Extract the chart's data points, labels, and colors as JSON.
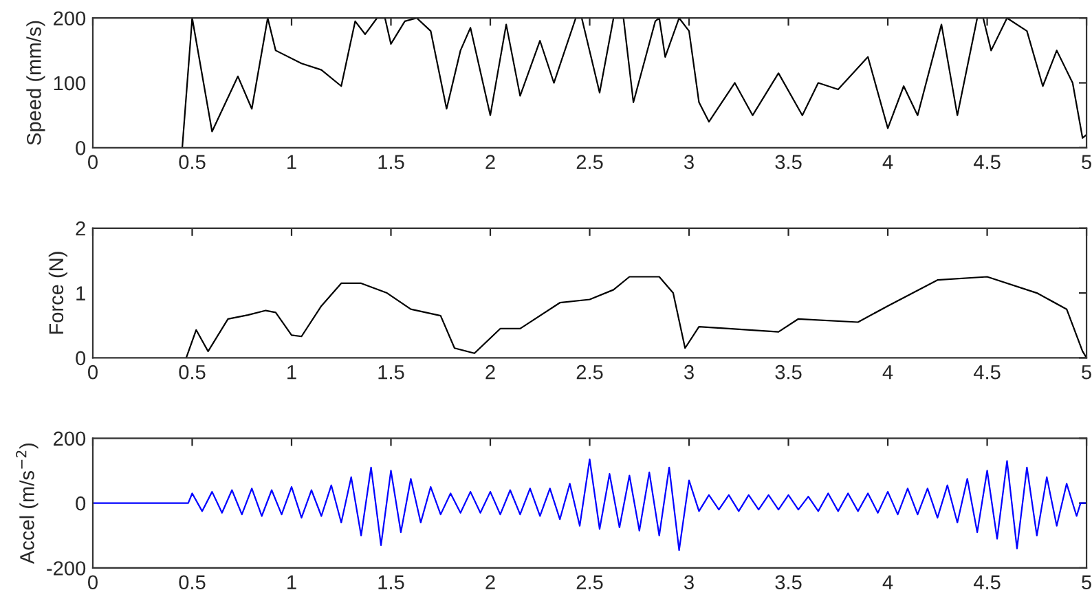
{
  "chart_data": [
    {
      "type": "line",
      "ylabel": "Speed (mm/s)",
      "xlim": [
        0,
        5
      ],
      "xticks": [
        0,
        0.5,
        1,
        1.5,
        2,
        2.5,
        3,
        3.5,
        4,
        4.5,
        5
      ],
      "ylim": [
        0,
        200
      ],
      "yticks": [
        0,
        100,
        200
      ],
      "x": [
        0.45,
        0.5,
        0.6,
        0.73,
        0.8,
        0.88,
        0.92,
        1.05,
        1.15,
        1.25,
        1.32,
        1.37,
        1.43,
        1.47,
        1.5,
        1.57,
        1.63,
        1.7,
        1.78,
        1.85,
        1.9,
        2.0,
        2.08,
        2.15,
        2.25,
        2.32,
        2.43,
        2.46,
        2.55,
        2.62,
        2.67,
        2.72,
        2.83,
        2.85,
        2.88,
        2.95,
        3.0,
        3.05,
        3.1,
        3.23,
        3.32,
        3.45,
        3.57,
        3.65,
        3.75,
        3.9,
        4.0,
        4.08,
        4.15,
        4.27,
        4.35,
        4.45,
        4.48,
        4.52,
        4.6,
        4.7,
        4.78,
        4.85,
        4.93,
        4.98,
        5.0
      ],
      "series": [
        {
          "color": "#000000",
          "values": [
            0,
            200,
            25,
            110,
            60,
            200,
            150,
            130,
            120,
            95,
            195,
            175,
            200,
            200,
            160,
            195,
            200,
            180,
            60,
            150,
            185,
            50,
            190,
            80,
            165,
            100,
            200,
            200,
            85,
            200,
            200,
            70,
            195,
            200,
            140,
            200,
            180,
            70,
            40,
            100,
            50,
            115,
            50,
            100,
            90,
            140,
            30,
            95,
            50,
            190,
            50,
            200,
            200,
            150,
            200,
            180,
            95,
            150,
            100,
            15,
            20
          ]
        }
      ]
    },
    {
      "type": "line",
      "ylabel": "Force (N)",
      "xlim": [
        0,
        5
      ],
      "xticks": [
        0,
        0.5,
        1,
        1.5,
        2,
        2.5,
        3,
        3.5,
        4,
        4.5,
        5
      ],
      "ylim": [
        0,
        2
      ],
      "yticks": [
        0,
        1,
        2
      ],
      "x": [
        0.47,
        0.52,
        0.58,
        0.68,
        0.78,
        0.87,
        0.92,
        1.0,
        1.05,
        1.15,
        1.25,
        1.35,
        1.48,
        1.6,
        1.75,
        1.82,
        1.92,
        2.05,
        2.15,
        2.35,
        2.5,
        2.62,
        2.7,
        2.85,
        2.92,
        2.98,
        3.05,
        3.2,
        3.45,
        3.55,
        3.85,
        4.0,
        4.25,
        4.5,
        4.75,
        4.9,
        4.98,
        5.0
      ],
      "series": [
        {
          "color": "#000000",
          "values": [
            0,
            0.43,
            0.1,
            0.6,
            0.66,
            0.73,
            0.7,
            0.35,
            0.33,
            0.8,
            1.15,
            1.15,
            1.0,
            0.75,
            0.65,
            0.15,
            0.07,
            0.45,
            0.45,
            0.85,
            0.9,
            1.05,
            1.25,
            1.25,
            1.0,
            0.15,
            0.48,
            0.45,
            0.4,
            0.6,
            0.55,
            0.8,
            1.2,
            1.25,
            1.0,
            0.75,
            0.1,
            0
          ]
        }
      ]
    },
    {
      "type": "line",
      "ylabel": "Accel (m/s$^{−2}$)",
      "xlim": [
        0,
        5
      ],
      "xticks": [
        0,
        0.5,
        1,
        1.5,
        2,
        2.5,
        3,
        3.5,
        4,
        4.5,
        5
      ],
      "ylim": [
        -200,
        200
      ],
      "yticks": [
        -200,
        0,
        200
      ],
      "x": [
        0,
        0.48,
        0.5,
        0.55,
        0.6,
        0.65,
        0.7,
        0.75,
        0.8,
        0.85,
        0.9,
        0.95,
        1.0,
        1.05,
        1.1,
        1.15,
        1.2,
        1.25,
        1.3,
        1.35,
        1.4,
        1.45,
        1.5,
        1.55,
        1.6,
        1.65,
        1.7,
        1.75,
        1.8,
        1.85,
        1.9,
        1.95,
        2.0,
        2.05,
        2.1,
        2.15,
        2.2,
        2.25,
        2.3,
        2.35,
        2.4,
        2.45,
        2.5,
        2.55,
        2.6,
        2.65,
        2.7,
        2.75,
        2.8,
        2.85,
        2.9,
        2.95,
        3.0,
        3.05,
        3.1,
        3.15,
        3.2,
        3.25,
        3.3,
        3.35,
        3.4,
        3.45,
        3.5,
        3.55,
        3.6,
        3.65,
        3.7,
        3.75,
        3.8,
        3.85,
        3.9,
        3.95,
        4.0,
        4.05,
        4.1,
        4.15,
        4.2,
        4.25,
        4.3,
        4.35,
        4.4,
        4.45,
        4.5,
        4.55,
        4.6,
        4.65,
        4.7,
        4.75,
        4.8,
        4.85,
        4.9,
        4.95,
        4.97,
        5.0
      ],
      "series": [
        {
          "color": "#0000ff",
          "values": [
            0,
            0,
            30,
            -25,
            35,
            -30,
            40,
            -35,
            45,
            -40,
            40,
            -35,
            50,
            -45,
            40,
            -40,
            55,
            -60,
            80,
            -100,
            110,
            -130,
            100,
            -90,
            75,
            -60,
            50,
            -35,
            30,
            -30,
            35,
            -30,
            35,
            -35,
            40,
            -35,
            45,
            -40,
            45,
            -50,
            60,
            -70,
            135,
            -80,
            90,
            -75,
            85,
            -85,
            95,
            -100,
            110,
            -145,
            70,
            -25,
            25,
            -20,
            25,
            -25,
            25,
            -20,
            25,
            -20,
            25,
            -20,
            20,
            -25,
            30,
            -25,
            30,
            -25,
            30,
            -30,
            35,
            -35,
            45,
            -35,
            45,
            -45,
            55,
            -60,
            75,
            -90,
            100,
            -110,
            130,
            -140,
            110,
            -100,
            80,
            -70,
            60,
            -40,
            0,
            0
          ]
        }
      ]
    }
  ]
}
